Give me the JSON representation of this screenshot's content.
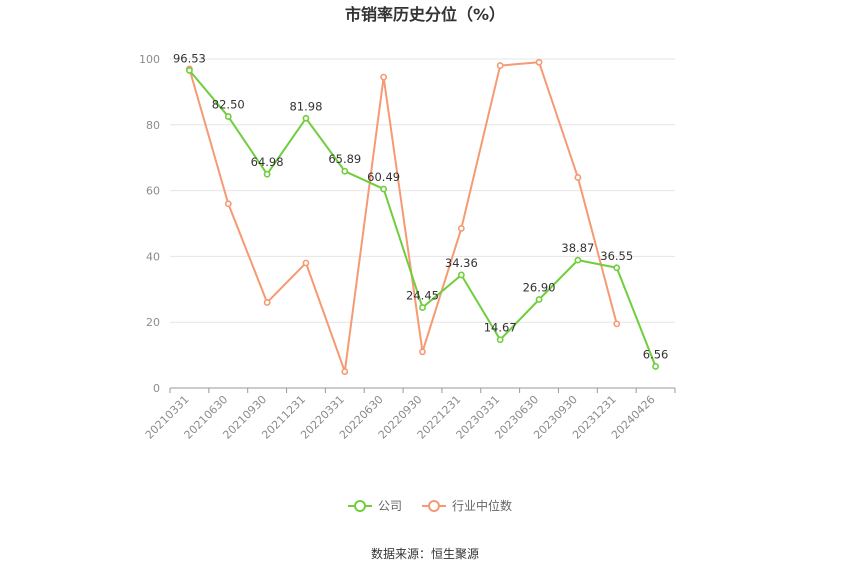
{
  "chart_data": {
    "type": "line",
    "title": "市销率历史分位（%）",
    "source": "数据来源：恒生聚源",
    "categories": [
      "20210331",
      "20210630",
      "20210930",
      "20211231",
      "20220331",
      "20220630",
      "20220930",
      "20221231",
      "20230331",
      "20230630",
      "20230930",
      "20231231",
      "20240426"
    ],
    "ylim": [
      0,
      100
    ],
    "yticks": [
      0,
      20,
      40,
      60,
      80,
      100
    ],
    "grid": true,
    "legend_position": "bottom-center",
    "series": [
      {
        "name": "公司",
        "color": "#6fce3c",
        "values": [
          96.53,
          82.5,
          64.98,
          81.98,
          65.89,
          60.49,
          24.45,
          34.36,
          14.67,
          26.9,
          38.87,
          36.55,
          6.56
        ],
        "labels": [
          "96.53",
          "82.50",
          "64.98",
          "81.98",
          "65.89",
          "60.49",
          "24.45",
          "34.36",
          "14.67",
          "26.90",
          "38.87",
          "36.55",
          "6.56"
        ]
      },
      {
        "name": "行业中位数",
        "color": "#f59a73",
        "values": [
          97,
          56,
          26,
          38,
          5,
          94.5,
          11,
          48.5,
          98,
          99,
          64,
          19.5,
          null
        ]
      }
    ]
  }
}
